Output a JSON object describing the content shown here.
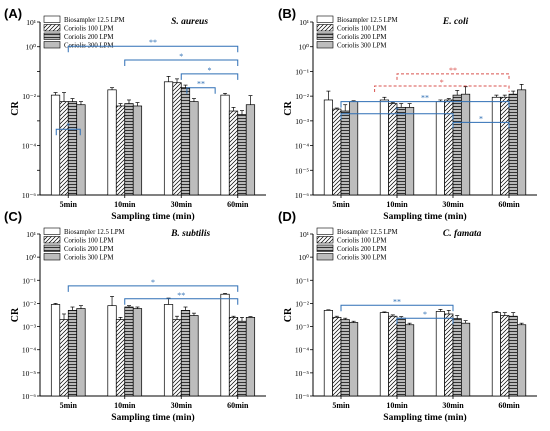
{
  "chart_data": [
    {
      "type": "bar",
      "panel_label": "(A)",
      "organism": "S. aureus",
      "categories": [
        "5min",
        "10min",
        "30min",
        "60min"
      ],
      "xlabel": "Sampling time (min)",
      "ylabel": "CR",
      "yscale": "log",
      "ylim": [
        1e-06,
        10
      ],
      "yticks": [
        "10⁻⁶",
        "10⁻⁴",
        "10⁻²",
        "10⁰",
        "10¹"
      ],
      "legend": "top-left",
      "series": [
        {
          "name": "Biosampler 12.5 LPM",
          "values": [
            0.011,
            0.018,
            0.038,
            0.011
          ],
          "errors": [
            0.003,
            0.004,
            0.025,
            0.002
          ]
        },
        {
          "name": "Coriolis 100 LPM",
          "values": [
            0.006,
            0.004,
            0.035,
            0.0025
          ],
          "errors": [
            0.008,
            0.001,
            0.015,
            0.001
          ]
        },
        {
          "name": "Coriolis 200 LPM",
          "values": [
            0.006,
            0.005,
            0.022,
            0.0018
          ],
          "errors": [
            0.002,
            0.002,
            0.006,
            0.0008
          ]
        },
        {
          "name": "Coriolis 300 LPM",
          "values": [
            0.0045,
            0.004,
            0.006,
            0.0045
          ],
          "errors": [
            0.0015,
            0.0015,
            0.002,
            0.006
          ]
        }
      ],
      "annotations": [
        "**",
        "*",
        "*",
        "**",
        "*"
      ]
    },
    {
      "type": "bar",
      "panel_label": "(B)",
      "organism": "E. coli",
      "categories": [
        "5min",
        "10min",
        "30min",
        "60min"
      ],
      "xlabel": "Sampling time (min)",
      "ylabel": "CR",
      "yscale": "log",
      "ylim": [
        1e-06,
        10
      ],
      "yticks": [
        "10⁻⁶",
        "10⁻⁵",
        "10⁻⁴",
        "10⁻³",
        "10⁻²",
        "10⁻¹",
        "10⁰",
        "10¹"
      ],
      "legend": "top-left",
      "series": [
        {
          "name": "Biosampler 12.5 LPM",
          "values": [
            0.007,
            0.007,
            0.006,
            0.009
          ],
          "errors": [
            0.009,
            0.002,
            0.001,
            0.002
          ]
        },
        {
          "name": "Coriolis 100 LPM",
          "values": [
            0.003,
            0.005,
            0.007,
            0.009
          ],
          "errors": [
            0.0003,
            0.0005,
            0.001,
            0.002
          ]
        },
        {
          "name": "Coriolis 200 LPM",
          "values": [
            0.0025,
            0.0035,
            0.011,
            0.012
          ],
          "errors": [
            0.002,
            0.0015,
            0.006,
            0.004
          ]
        },
        {
          "name": "Coriolis 300 LPM",
          "values": [
            0.006,
            0.0035,
            0.012,
            0.018
          ],
          "errors": [
            0.0005,
            0.0015,
            0.012,
            0.012
          ]
        }
      ],
      "annotations": [
        "**",
        "*",
        "**",
        "*",
        "*"
      ]
    },
    {
      "type": "bar",
      "panel_label": "(C)",
      "organism": "B. subtilis",
      "categories": [
        "5min",
        "10min",
        "30min",
        "60min"
      ],
      "xlabel": "Sampling time (min)",
      "ylabel": "CR",
      "yscale": "log",
      "ylim": [
        1e-06,
        10
      ],
      "yticks": [
        "10⁻⁶",
        "10⁻⁵",
        "10⁻⁴",
        "10⁻³",
        "10⁻²",
        "10⁻¹",
        "10⁰",
        "10¹"
      ],
      "legend": "top-left",
      "series": [
        {
          "name": "Biosampler 12.5 LPM",
          "values": [
            0.009,
            0.008,
            0.009,
            0.025
          ],
          "errors": [
            0.001,
            0.012,
            0.008,
            0.002
          ]
        },
        {
          "name": "Coriolis 100 LPM",
          "values": [
            0.002,
            0.002,
            0.002,
            0.0025
          ],
          "errors": [
            0.0015,
            0.0005,
            0.0008,
            0.0003
          ]
        },
        {
          "name": "Coriolis 200 LPM",
          "values": [
            0.005,
            0.007,
            0.005,
            0.0017
          ],
          "errors": [
            0.002,
            0.001,
            0.002,
            0.0008
          ]
        },
        {
          "name": "Coriolis 300 LPM",
          "values": [
            0.006,
            0.006,
            0.003,
            0.0025
          ],
          "errors": [
            0.002,
            0.001,
            0.0008,
            0.0002
          ]
        }
      ],
      "annotations": [
        "*",
        "**"
      ]
    },
    {
      "type": "bar",
      "panel_label": "(D)",
      "organism": "C. famata",
      "categories": [
        "5min",
        "10min",
        "30min",
        "60min"
      ],
      "xlabel": "Sampling time (min)",
      "ylabel": "CR",
      "yscale": "log",
      "ylim": [
        1e-06,
        10
      ],
      "yticks": [
        "10⁻⁶",
        "10⁻⁵",
        "10⁻⁴",
        "10⁻³",
        "10⁻²",
        "10⁻¹",
        "10⁰",
        "10¹"
      ],
      "legend": "top-left",
      "series": [
        {
          "name": "Biosampler 12.5 LPM",
          "values": [
            0.005,
            0.004,
            0.0045,
            0.004
          ],
          "errors": [
            0.0003,
            0.0003,
            0.001,
            0.0005
          ]
        },
        {
          "name": "Coriolis 100 LPM",
          "values": [
            0.0025,
            0.0028,
            0.0035,
            0.003
          ],
          "errors": [
            0.0003,
            0.0004,
            0.0015,
            0.001
          ]
        },
        {
          "name": "Coriolis 200 LPM",
          "values": [
            0.002,
            0.0023,
            0.0022,
            0.0028
          ],
          "errors": [
            0.0003,
            0.0004,
            0.0008,
            0.0012
          ]
        },
        {
          "name": "Coriolis 300 LPM",
          "values": [
            0.0015,
            0.0012,
            0.0014,
            0.0012
          ],
          "errors": [
            0.0002,
            0.0002,
            0.0004,
            0.0002
          ]
        }
      ],
      "annotations": [
        "**",
        "*"
      ]
    }
  ],
  "style": {
    "significance_color": "#2e6fb5",
    "significance_dashed_color": "#d9534f"
  }
}
